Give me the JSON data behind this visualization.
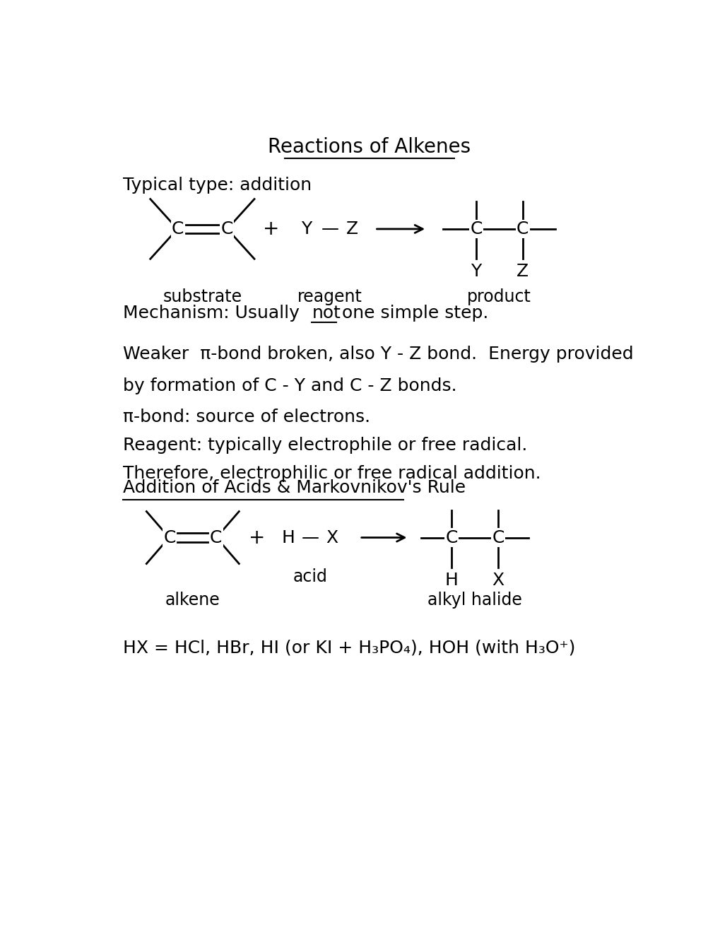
{
  "title": "Reactions of Alkenes",
  "background_color": "#ffffff",
  "text_color": "#000000",
  "figsize": [
    10.2,
    13.2
  ],
  "dpi": 100,
  "title_fontsize": 20,
  "body_fontsize": 18,
  "typical_type_label": "Typical type: addition",
  "substrate_label": "substrate",
  "reagent_label": "reagent",
  "product_label": "product",
  "mechanism_pre": "Mechanism: Usually ",
  "mechanism_not": "not",
  "mechanism_post": " one simple step.",
  "weaker_line1": "Weaker  π-bond broken, also Y - Z bond.  Energy provided",
  "weaker_line2": "by formation of C - Y and C - Z bonds.",
  "pi_bond_line": "π-bond: source of electrons.",
  "reagent_line": "Reagent: typically electrophile or free radical.",
  "therefore_line": "Therefore, electrophilic or free radical addition.",
  "addition_title": "Addition of Acids & Markovnikov's Rule",
  "alkene_label": "alkene",
  "acid_label": "acid",
  "alkyl_halide_label": "alkyl halide",
  "hx_line": "HX = HCl, HBr, HI (or KI + H₃PO₄), HOH (with H₃O⁺)"
}
